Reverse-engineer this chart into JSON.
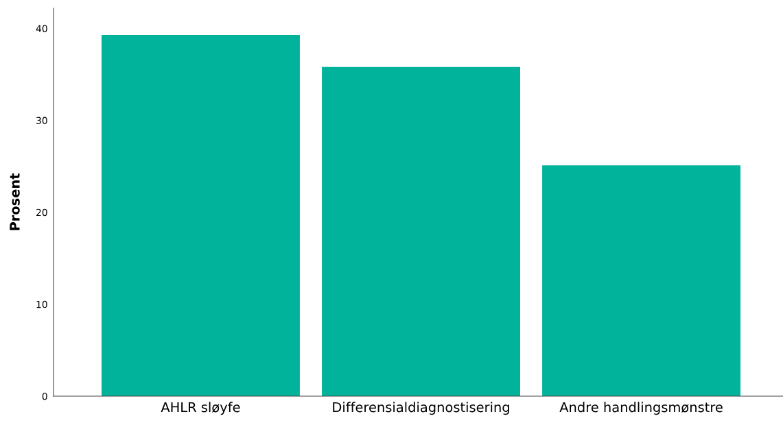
{
  "chart_data": {
    "type": "bar",
    "ylabel": "Prosent",
    "categories": [
      "AHLR sløyfe",
      "Differensialdiagnostisering",
      "Andre handlingsmønstre"
    ],
    "values": [
      39.3,
      35.8,
      25.1
    ],
    "color": "#00b39a",
    "ylim": [
      0,
      42.2
    ],
    "yticks": [
      0,
      10,
      20,
      30,
      40
    ],
    "grid": false,
    "legend": false
  }
}
